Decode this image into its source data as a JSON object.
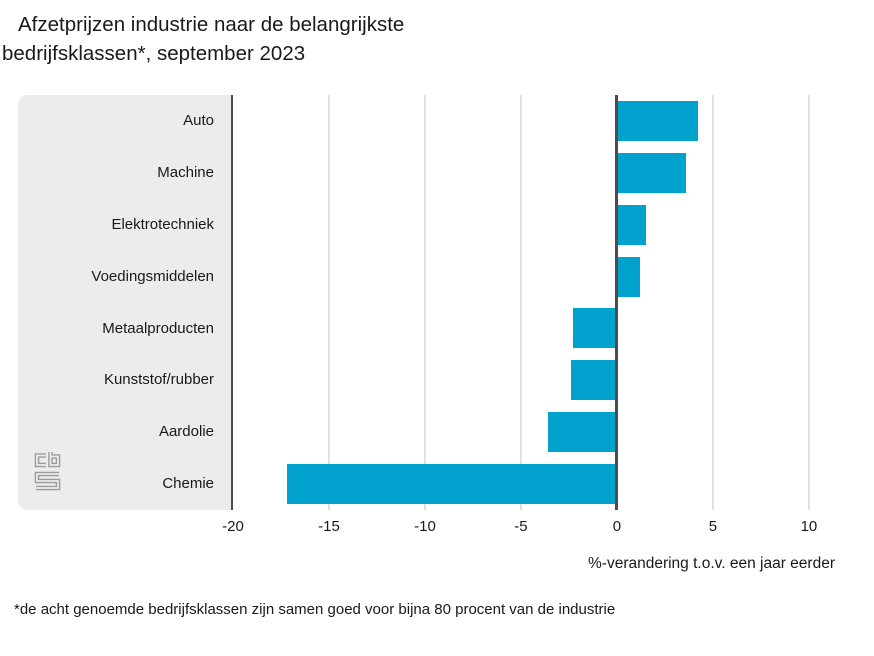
{
  "title": "Afzetprijzen industrie naar de belangrijkste bedrijfsklassen*, september 2023",
  "footnote": "*de acht genoemde bedrijfsklassen zijn samen goed voor bijna 80 procent van de industrie",
  "logo": "cbs-logo",
  "chart_data": {
    "type": "bar",
    "orientation": "horizontal",
    "title": "Afzetprijzen industrie naar de belangrijkste bedrijfsklassen*, september 2023",
    "categories": [
      "Auto",
      "Machine",
      "Elektrotechniek",
      "Voedingsmiddelen",
      "Metaalproducten",
      "Kunststof/rubber",
      "Aardolie",
      "Chemie"
    ],
    "values": [
      4.2,
      3.6,
      1.5,
      1.2,
      -2.3,
      -2.4,
      -3.6,
      -17.2
    ],
    "unit": "%",
    "xlabel": "%-verandering t.o.v. een jaar eerder",
    "ylabel": "",
    "xticks": [
      -20,
      -15,
      -10,
      -5,
      0,
      5,
      10
    ],
    "xlim": [
      -20,
      12.4
    ],
    "grid": true,
    "legend": false,
    "colors": {
      "bar": "#00a1cd",
      "panel": "#ececec",
      "axis": "#4d4d4d",
      "gridline": "#e0e0e0",
      "text": "#191919",
      "logo": "#9b9b9b"
    }
  }
}
